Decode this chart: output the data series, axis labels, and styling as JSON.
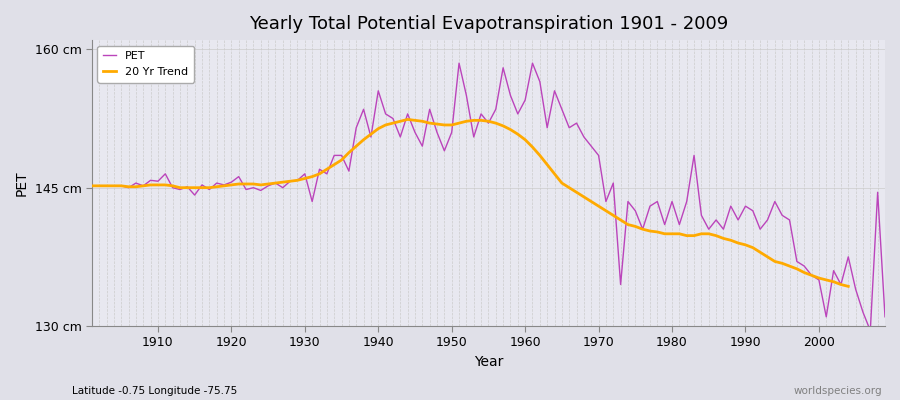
{
  "title": "Yearly Total Potential Evapotranspiration 1901 - 2009",
  "xlabel": "Year",
  "ylabel": "PET",
  "footnote_left": "Latitude -0.75 Longitude -75.75",
  "footnote_right": "worldspecies.org",
  "background_color": "#e0e0e8",
  "plot_bg_color": "#e8e8f0",
  "pet_color": "#bb44bb",
  "trend_color": "#ffaa00",
  "ylim": [
    130,
    161
  ],
  "yticks": [
    130,
    145,
    160
  ],
  "ytick_labels": [
    "130 cm",
    "145 cm",
    "160 cm"
  ],
  "years": [
    1901,
    1902,
    1903,
    1904,
    1905,
    1906,
    1907,
    1908,
    1909,
    1910,
    1911,
    1912,
    1913,
    1914,
    1915,
    1916,
    1917,
    1918,
    1919,
    1920,
    1921,
    1922,
    1923,
    1924,
    1925,
    1926,
    1927,
    1928,
    1929,
    1930,
    1931,
    1932,
    1933,
    1934,
    1935,
    1936,
    1937,
    1938,
    1939,
    1940,
    1941,
    1942,
    1943,
    1944,
    1945,
    1946,
    1947,
    1948,
    1949,
    1950,
    1951,
    1952,
    1953,
    1954,
    1955,
    1956,
    1957,
    1958,
    1959,
    1960,
    1961,
    1962,
    1963,
    1964,
    1965,
    1966,
    1967,
    1968,
    1969,
    1970,
    1971,
    1972,
    1973,
    1974,
    1975,
    1976,
    1977,
    1978,
    1979,
    1980,
    1981,
    1982,
    1983,
    1984,
    1985,
    1986,
    1987,
    1988,
    1989,
    1990,
    1991,
    1992,
    1993,
    1994,
    1995,
    1996,
    1997,
    1998,
    1999,
    2000,
    2001,
    2002,
    2003,
    2004,
    2005,
    2006,
    2007,
    2008,
    2009
  ],
  "pet_values": [
    145.2,
    145.2,
    145.2,
    145.2,
    145.2,
    145.0,
    145.5,
    145.2,
    145.8,
    145.7,
    146.5,
    145.0,
    144.8,
    145.1,
    144.2,
    145.3,
    144.8,
    145.5,
    145.3,
    145.6,
    146.2,
    144.8,
    145.0,
    144.7,
    145.2,
    145.5,
    145.0,
    145.7,
    145.8,
    146.5,
    143.5,
    147.0,
    146.5,
    148.5,
    148.5,
    146.8,
    151.5,
    153.5,
    150.5,
    155.5,
    153.0,
    152.5,
    150.5,
    153.0,
    151.0,
    149.5,
    153.5,
    151.0,
    149.0,
    151.0,
    158.5,
    155.0,
    150.5,
    153.0,
    152.0,
    153.5,
    158.0,
    155.0,
    153.0,
    154.5,
    158.5,
    156.5,
    151.5,
    155.5,
    153.5,
    151.5,
    152.0,
    150.5,
    149.5,
    148.5,
    143.5,
    145.5,
    134.5,
    143.5,
    142.5,
    140.5,
    143.0,
    143.5,
    141.0,
    143.5,
    141.0,
    143.5,
    148.5,
    142.0,
    140.5,
    141.5,
    140.5,
    143.0,
    141.5,
    143.0,
    142.5,
    140.5,
    141.5,
    143.5,
    142.0,
    141.5,
    137.0,
    136.5,
    135.5,
    135.0,
    131.0,
    136.0,
    134.5,
    137.5,
    134.0,
    131.5,
    129.5,
    144.5,
    131.0
  ],
  "trend_values": [
    145.2,
    145.2,
    145.2,
    145.2,
    145.2,
    145.1,
    145.1,
    145.2,
    145.3,
    145.3,
    145.3,
    145.2,
    145.0,
    145.0,
    145.0,
    145.0,
    145.0,
    145.1,
    145.2,
    145.3,
    145.4,
    145.4,
    145.4,
    145.3,
    145.4,
    145.5,
    145.6,
    145.7,
    145.8,
    146.0,
    146.2,
    146.5,
    147.0,
    147.5,
    148.0,
    148.8,
    149.5,
    150.2,
    150.8,
    151.4,
    151.8,
    152.0,
    152.2,
    152.4,
    152.3,
    152.2,
    152.0,
    151.9,
    151.8,
    151.8,
    152.0,
    152.2,
    152.3,
    152.3,
    152.2,
    152.0,
    151.7,
    151.3,
    150.8,
    150.2,
    149.4,
    148.5,
    147.5,
    146.5,
    145.5,
    145.0,
    144.5,
    144.0,
    143.5,
    143.0,
    142.5,
    142.0,
    141.5,
    141.0,
    140.8,
    140.5,
    140.3,
    140.2,
    140.0,
    140.0,
    140.0,
    139.8,
    139.8,
    140.0,
    140.0,
    139.8,
    139.5,
    139.3,
    139.0,
    138.8,
    138.5,
    138.0,
    137.5,
    137.0,
    136.8,
    136.5,
    136.2,
    135.8,
    135.5,
    135.2,
    135.0,
    134.8,
    134.5,
    134.3,
    null,
    null,
    null,
    null,
    null
  ]
}
